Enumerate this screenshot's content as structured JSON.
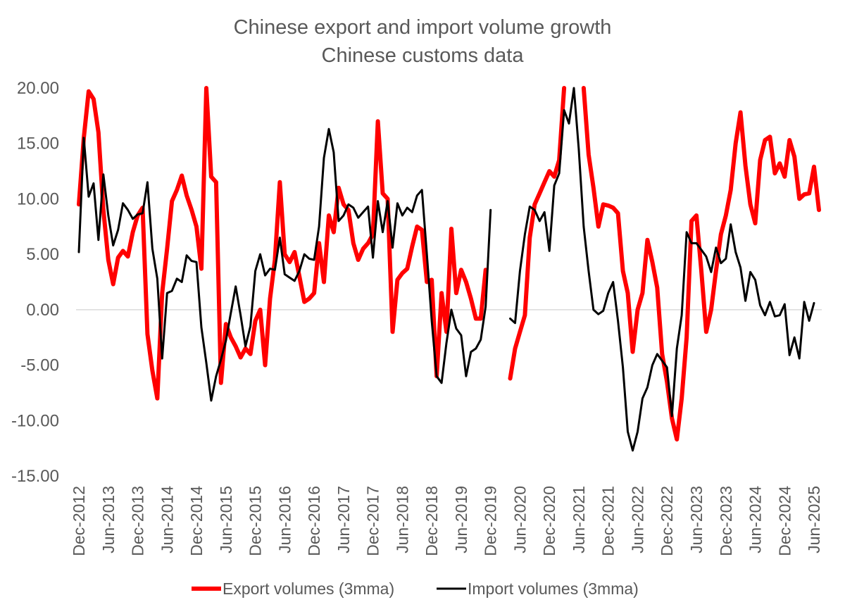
{
  "chart_data": {
    "type": "line",
    "title": "Chinese export and import volume growth",
    "subtitle": "Chinese customs data",
    "xlabel": "",
    "ylabel": "",
    "ylim": [
      -15,
      20
    ],
    "y_ticks": [
      "20.00",
      "15.00",
      "10.00",
      "5.00",
      "0.00",
      "-5.00",
      "-10.00",
      "-15.00"
    ],
    "x_tick_labels": [
      "Dec-2012",
      "Jun-2013",
      "Dec-2013",
      "Jun-2014",
      "Dec-2014",
      "Jun-2015",
      "Dec-2015",
      "Jun-2016",
      "Dec-2016",
      "Jun-2017",
      "Dec-2017",
      "Jun-2018",
      "Dec-2018",
      "Jun-2019",
      "Dec-2019",
      "Jun-2020",
      "Dec-2020",
      "Jun-2021",
      "Dec-2021",
      "Jun-2022",
      "Dec-2022",
      "Jun-2023",
      "Dec-2023",
      "Jun-2024",
      "Dec-2024",
      "Jun-2025"
    ],
    "x_start": "Dec-2012",
    "x_frequency": "monthly",
    "grid": false,
    "legend_position": "bottom",
    "series": [
      {
        "name": "Export volumes (3mma)",
        "color": "#ff0000",
        "values": [
          9.5,
          15.5,
          19.7,
          19.0,
          16.0,
          9.0,
          4.5,
          2.3,
          4.7,
          5.3,
          4.8,
          7.0,
          8.5,
          9.2,
          -2.2,
          -5.5,
          -8.0,
          1.5,
          5.5,
          9.8,
          10.8,
          12.1,
          10.3,
          9.0,
          7.5,
          3.7,
          20.0,
          12.0,
          11.5,
          -6.6,
          -1.3,
          -2.5,
          -3.3,
          -4.3,
          -3.5,
          -4.0,
          -1.0,
          0.0,
          -5.0,
          1.0,
          4.5,
          11.5,
          5.0,
          4.3,
          5.2,
          3.0,
          0.7,
          1.0,
          1.5,
          6.0,
          2.5,
          8.5,
          7.0,
          11.0,
          9.5,
          9.0,
          6.0,
          4.5,
          5.5,
          6.0,
          6.8,
          17.0,
          10.5,
          10.0,
          -2.0,
          2.7,
          3.3,
          3.7,
          5.7,
          7.5,
          7.2,
          2.5,
          2.7,
          -6.0,
          1.5,
          -2.0,
          7.3,
          1.5,
          3.6,
          2.5,
          1.0,
          -0.8,
          -0.8,
          3.6,
          null,
          null,
          null,
          null,
          -6.2,
          -3.5,
          -2.0,
          -0.5,
          6.5,
          9.5,
          10.5,
          11.5,
          12.5,
          12.0,
          13.5,
          20.0,
          null,
          null,
          null,
          20.0,
          14.0,
          11.0,
          7.5,
          9.5,
          9.4,
          9.2,
          8.7,
          3.5,
          1.5,
          -3.8,
          0.0,
          1.5,
          6.3,
          4.3,
          2.0,
          -4.0,
          -6.5,
          -9.8,
          -11.7,
          -8.0,
          -2.5,
          8.0,
          8.5,
          3.5,
          -2.0,
          0.0,
          3.5,
          6.8,
          8.5,
          10.8,
          15.0,
          17.8,
          13.0,
          9.5,
          7.8,
          13.5,
          15.3,
          15.6,
          12.3,
          13.2,
          12.0,
          15.3,
          13.8,
          10.0,
          10.4,
          10.5,
          12.9,
          9.0
        ]
      },
      {
        "name": "Import volumes (3mma)",
        "color": "#000000",
        "values": [
          5.2,
          15.5,
          10.2,
          11.4,
          6.3,
          12.2,
          8.5,
          5.8,
          7.2,
          9.6,
          9.0,
          8.2,
          8.6,
          8.7,
          11.5,
          5.5,
          2.8,
          -4.4,
          1.5,
          1.7,
          2.8,
          2.5,
          4.9,
          4.4,
          4.3,
          -1.6,
          -4.8,
          -8.2,
          -6.0,
          -4.5,
          -2.8,
          -0.3,
          2.1,
          -0.5,
          -3.3,
          -1.5,
          3.5,
          5.0,
          3.1,
          3.7,
          3.6,
          6.5,
          3.2,
          2.9,
          2.6,
          3.5,
          5.0,
          4.6,
          4.5,
          7.5,
          13.7,
          16.3,
          14.2,
          8.0,
          8.5,
          9.5,
          9.2,
          8.3,
          8.8,
          9.3,
          4.7,
          9.8,
          7.0,
          9.8,
          5.6,
          9.6,
          8.5,
          9.2,
          8.8,
          10.3,
          10.8,
          5.0,
          -1.0,
          -6.0,
          -6.6,
          -3.0,
          0.0,
          -1.7,
          -2.3,
          -6.0,
          -3.8,
          -3.5,
          -2.7,
          0.3,
          9.0,
          null,
          null,
          null,
          -0.8,
          -1.2,
          3.5,
          6.8,
          9.3,
          9.0,
          8.0,
          8.8,
          5.3,
          11.2,
          12.3,
          18.0,
          16.8,
          20.0,
          14.5,
          7.5,
          3.5,
          0.0,
          -0.4,
          -0.1,
          1.5,
          2.5,
          -1.0,
          -5.2,
          -11.0,
          -12.7,
          -11.0,
          -8.0,
          -7.0,
          -5.0,
          -4.0,
          -4.6,
          -5.2,
          -9.6,
          -3.5,
          -0.5,
          7.0,
          6.0,
          6.0,
          5.4,
          4.8,
          3.4,
          5.6,
          4.2,
          4.6,
          7.7,
          5.2,
          3.8,
          0.8,
          3.4,
          2.7,
          0.4,
          -0.5,
          0.7,
          -0.6,
          -0.5,
          0.5,
          -4.1,
          -2.5,
          -4.4,
          0.7,
          -1.0,
          0.6
        ]
      }
    ]
  }
}
